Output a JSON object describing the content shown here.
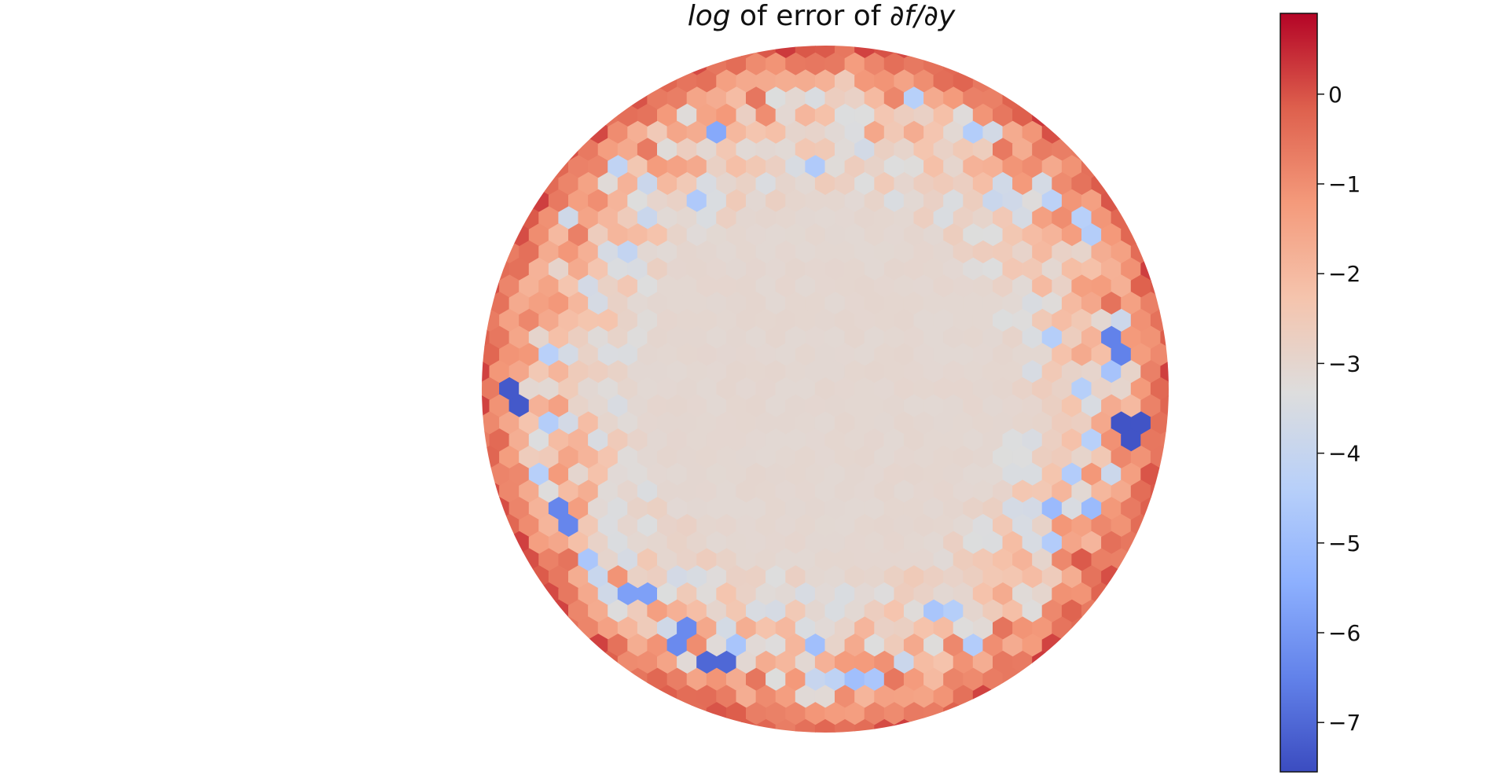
{
  "chart_data": {
    "type": "heatmap",
    "title": {
      "prefix": "log",
      "middle": " of error of ",
      "expr": "∂f/∂y"
    },
    "colormap": "coolwarm",
    "domain": "disk",
    "cell_shape": "hexagon",
    "colorbar": {
      "vmin": -7.55,
      "vmax": 0.9,
      "ticks": [
        0,
        -1,
        -2,
        -3,
        -4,
        -5,
        -6,
        -7
      ],
      "tick_labels": [
        "0",
        "−1",
        "−2",
        "−3",
        "−4",
        "−5",
        "−6",
        "−7"
      ],
      "placement": "right"
    },
    "field_description_values": {
      "interior_value": -3.05,
      "rim_value": 0.1,
      "outliers": [
        {
          "angle_deg": 182,
          "r": 0.91,
          "value": -7.3
        },
        {
          "angle_deg": 353,
          "r": 0.9,
          "value": -7.4
        },
        {
          "angle_deg": 8,
          "r": 0.87,
          "value": -6.5
        },
        {
          "angle_deg": 206,
          "r": 0.85,
          "value": -6.4
        },
        {
          "angle_deg": 248,
          "r": 0.86,
          "value": -7.0
        },
        {
          "angle_deg": 240,
          "r": 0.83,
          "value": -6.3
        },
        {
          "angle_deg": 112,
          "r": 0.82,
          "value": -5.6
        },
        {
          "angle_deg": 228,
          "r": 0.8,
          "value": -5.8
        }
      ]
    }
  }
}
